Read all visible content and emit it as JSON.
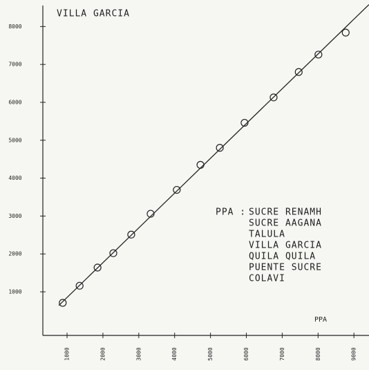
{
  "chart_data": {
    "type": "scatter",
    "title": "VILLA GARCIA",
    "x_label": "PPA",
    "legend_prefix": "PPA :",
    "legend_lines": [
      "SUCRE RENAMH",
      "SUCRE AAGANA",
      "TALULA",
      "VILLA GARCIA",
      "QUILA QUILA",
      "PUENTE SUCRE",
      "COLAVI"
    ],
    "x": [
      880,
      1350,
      1850,
      2290,
      2790,
      3330,
      4060,
      4720,
      5260,
      5950,
      6760,
      7460,
      8010,
      8770
    ],
    "values": [
      710,
      1160,
      1640,
      2020,
      2510,
      3060,
      3690,
      4350,
      4800,
      5460,
      6130,
      6800,
      7260,
      7840
    ],
    "fit_line": {
      "x": [
        770,
        9420
      ],
      "y": [
        640,
        8580
      ]
    },
    "color": "#222222",
    "xlim": [
      325,
      9420
    ],
    "ylim": [
      -150,
      8700
    ],
    "xticks": [
      1000,
      2000,
      3000,
      4000,
      5000,
      6000,
      7000,
      8000,
      9000
    ],
    "yticks": [
      1000,
      2000,
      3000,
      4000,
      5000,
      6000,
      7000,
      8000
    ]
  }
}
